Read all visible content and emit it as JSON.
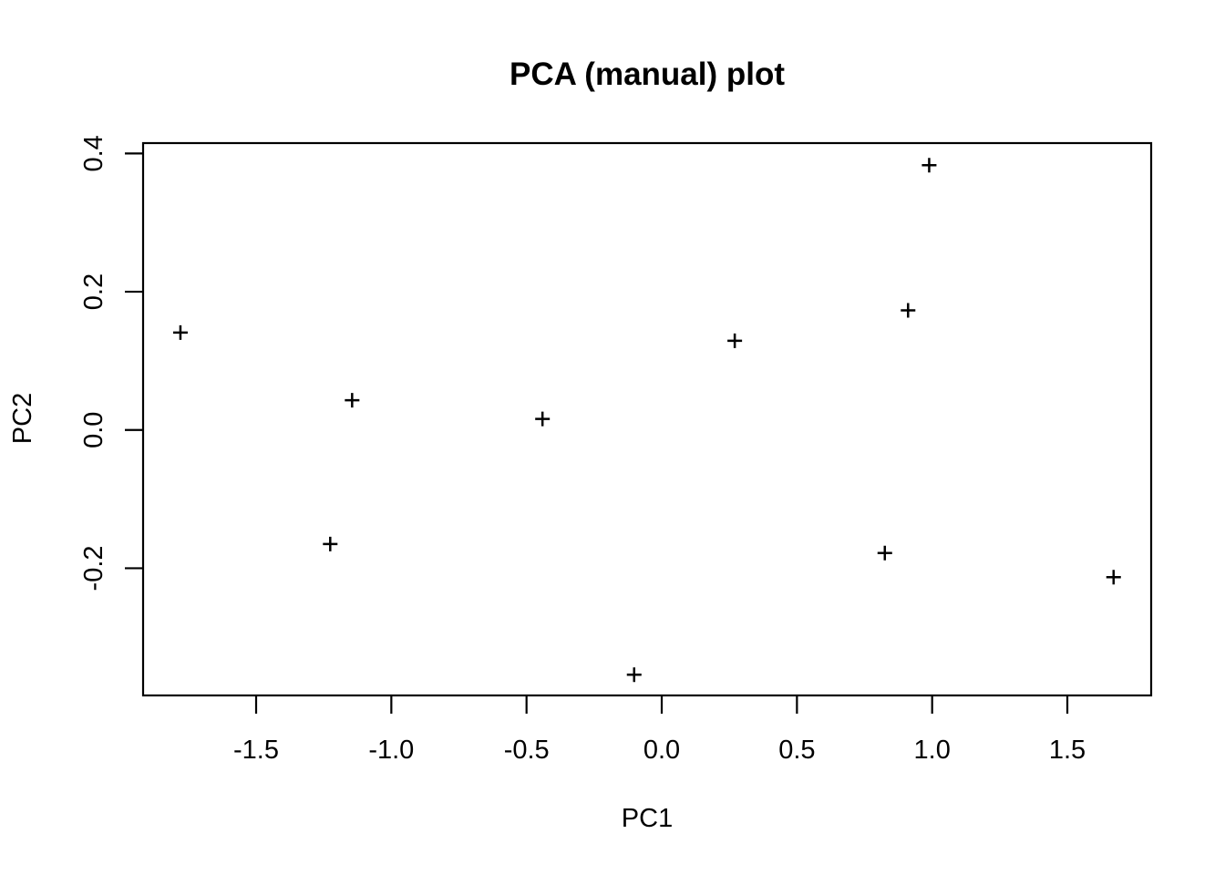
{
  "figure": {
    "background_color": "#ffffff",
    "foreground_color": "#000000"
  },
  "chart_data": {
    "type": "scatter",
    "title": "PCA (manual) plot",
    "xlabel": "PC1",
    "ylabel": "PC2",
    "marker": "+",
    "marker_color": "#000000",
    "grid": false,
    "legend_position": "none",
    "xlim": [
      -1.918,
      1.81
    ],
    "ylim": [
      -0.384,
      0.415
    ],
    "x_ticks": {
      "values": [
        -1.5,
        -1.0,
        -0.5,
        0.0,
        0.5,
        1.0,
        1.5
      ],
      "labels": [
        "-1.5",
        "-1.0",
        "-0.5",
        "0.0",
        "0.5",
        "1.0",
        "1.5"
      ]
    },
    "y_ticks": {
      "values": [
        -0.2,
        0.0,
        0.2,
        0.4
      ],
      "labels": [
        "-0.2",
        "0.0",
        "0.2",
        "0.4"
      ]
    },
    "series": [
      {
        "name": "scores",
        "points": [
          [
            -1.78,
            0.141
          ],
          [
            -1.145,
            0.043
          ],
          [
            -1.226,
            -0.165
          ],
          [
            -0.441,
            0.016
          ],
          [
            -0.102,
            -0.354
          ],
          [
            0.27,
            0.129
          ],
          [
            0.825,
            -0.178
          ],
          [
            0.911,
            0.173
          ],
          [
            0.989,
            0.383
          ],
          [
            1.671,
            -0.213
          ]
        ]
      }
    ]
  }
}
